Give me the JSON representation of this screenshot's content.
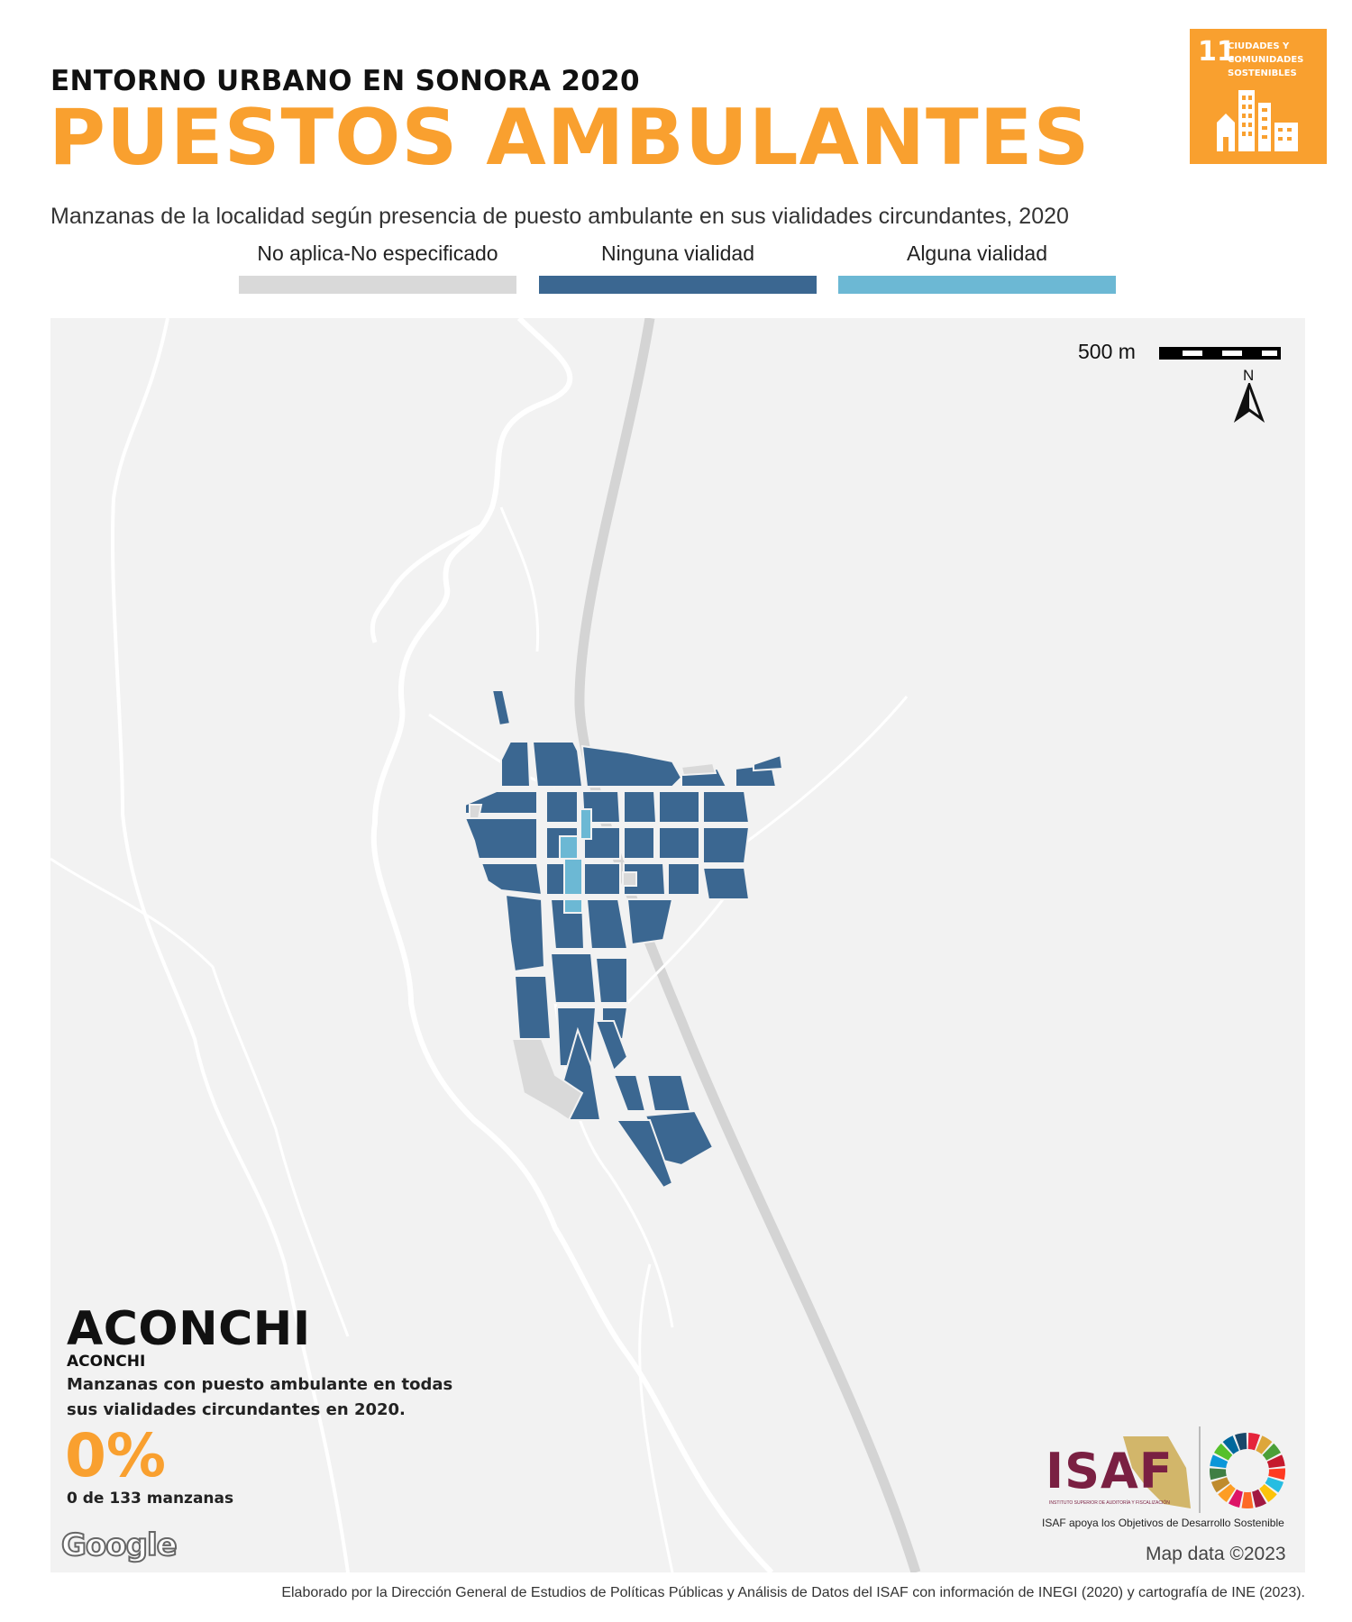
{
  "header": {
    "kicker": "ENTORNO URBANO EN SONORA 2020",
    "title": "PUESTOS AMBULANTES",
    "subtitle": "Manzanas de la localidad según presencia de puesto ambulante en sus vialidades circundantes, 2020"
  },
  "sdg_badge": {
    "number": "11",
    "label": "CIUDADES Y COMUNIDADES SOSTENIBLES",
    "icon": "city-buildings-icon",
    "color": "#f9a02f"
  },
  "legend": [
    {
      "label": "No aplica-No especificado",
      "color": "#d9d9d9"
    },
    {
      "label": "Ninguna vialidad",
      "color": "#3b6791"
    },
    {
      "label": "Alguna vialidad",
      "color": "#6cb8d4"
    }
  ],
  "map": {
    "scale_label": "500 m",
    "north_label": "N",
    "attribution": "Map data ©2023",
    "provider_logo": "Google",
    "background_color": "#f2f2f2",
    "road_color": "#ffffff",
    "highway_color": "#d4d4d4"
  },
  "locality": {
    "name": "ACONCHI",
    "municipality": "ACONCHI",
    "description": "Manzanas con puesto ambulante en todas sus vialidades circundantes en 2020.",
    "percent": 0,
    "percent_label": "0%",
    "count_label": "0 de 133 manzanas"
  },
  "isaf": {
    "logo_text": "ISAF",
    "logo_tiny": "INSTITUTO SUPERIOR DE AUDITORÍA Y FISCALIZACIÓN",
    "caption": "ISAF apoya los Objetivos de Desarrollo Sostenible"
  },
  "footer": {
    "credit": "Elaborado por la Dirección General de Estudios de Políticas Públicas y Análisis de Datos del ISAF con información de INEGI (2020) y cartografía de INE (2023)."
  }
}
